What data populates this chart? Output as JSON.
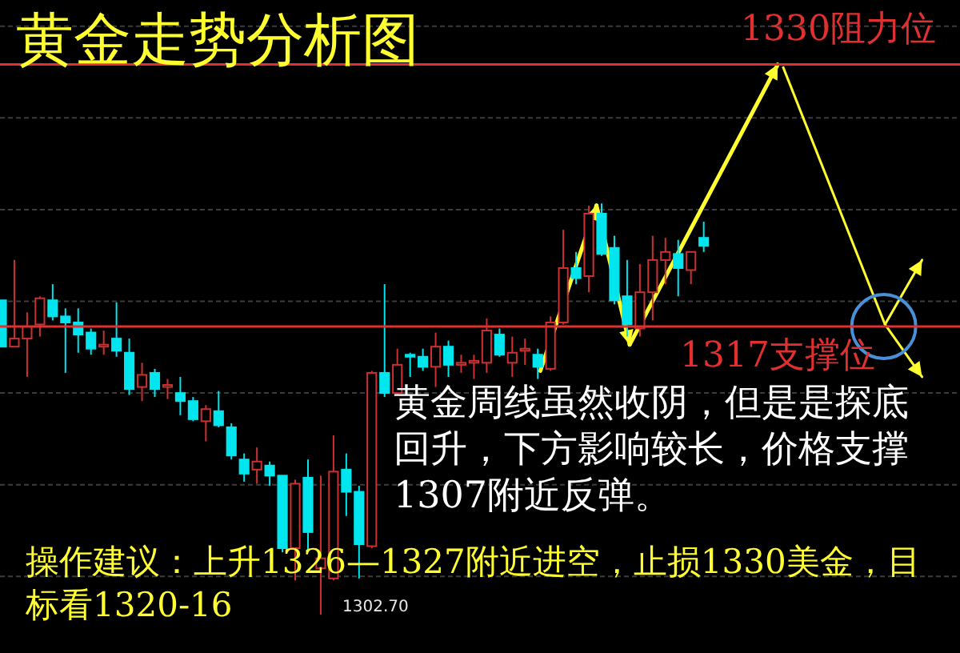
{
  "chart_data": {
    "type": "candlestick",
    "title": "黄金走势分析图",
    "categories": [
      null,
      null,
      null,
      null,
      null,
      null,
      null,
      null,
      null,
      null,
      null,
      null,
      null,
      null,
      null,
      null,
      null,
      null,
      null,
      null,
      null,
      null,
      null,
      null,
      null,
      null,
      null,
      null,
      null,
      null,
      null,
      null,
      null,
      null,
      null,
      null,
      null,
      null,
      null,
      null,
      null,
      null,
      null,
      null,
      null,
      null,
      null,
      null,
      null,
      null,
      null,
      null,
      null,
      null,
      null,
      null
    ],
    "ohlc": [
      [
        1318.3,
        1318.3,
        1316.0,
        1316.0
      ],
      [
        1316.0,
        1320.3,
        1316.0,
        1316.4
      ],
      [
        1316.4,
        1317.7,
        1314.5,
        1317.0
      ],
      [
        1317.1,
        1318.5,
        1316.5,
        1318.4
      ],
      [
        1318.3,
        1319.1,
        1317.3,
        1317.5
      ],
      [
        1317.5,
        1317.9,
        1314.7,
        1317.2
      ],
      [
        1317.2,
        1317.9,
        1315.7,
        1316.6
      ],
      [
        1316.7,
        1316.9,
        1315.6,
        1315.9
      ],
      [
        1316.0,
        1316.8,
        1315.6,
        1316.1
      ],
      [
        1316.4,
        1318.2,
        1315.5,
        1315.8
      ],
      [
        1315.7,
        1316.4,
        1313.6,
        1313.9
      ],
      [
        1314.0,
        1315.2,
        1313.3,
        1314.6
      ],
      [
        1314.7,
        1314.9,
        1313.5,
        1313.9
      ],
      [
        1314.0,
        1314.4,
        1313.4,
        1314.1
      ],
      [
        1313.7,
        1314.5,
        1312.6,
        1313.3
      ],
      [
        1313.3,
        1313.5,
        1312.3,
        1312.4
      ],
      [
        1312.3,
        1313.1,
        1311.3,
        1312.9
      ],
      [
        1312.8,
        1313.8,
        1312.0,
        1312.1
      ],
      [
        1312.0,
        1312.2,
        1310.4,
        1310.6
      ],
      [
        1310.4,
        1310.7,
        1309.3,
        1309.7
      ],
      [
        1309.9,
        1311.0,
        1309.2,
        1310.3
      ],
      [
        1310.1,
        1310.3,
        1309.1,
        1309.6
      ],
      [
        1309.6,
        1309.6,
        1305.8,
        1306.0
      ],
      [
        1306.0,
        1309.4,
        1304.4,
        1309.2
      ],
      [
        1309.5,
        1310.4,
        1305.8,
        1306.8
      ],
      [
        1305.0,
        1309.6,
        1302.7,
        1305.5
      ],
      [
        1304.5,
        1311.6,
        1304.4,
        1309.8
      ],
      [
        1309.9,
        1310.7,
        1307.6,
        1308.8
      ],
      [
        1308.8,
        1309.1,
        1304.5,
        1306.2
      ],
      [
        1306.1,
        1314.8,
        1306.0,
        1314.7
      ],
      [
        1314.7,
        1319.1,
        1313.5,
        1313.7
      ],
      [
        1313.7,
        1315.9,
        1313.6,
        1315.1
      ],
      [
        1315.6,
        1315.7,
        1314.5,
        1315.5
      ],
      [
        1315.5,
        1315.9,
        1314.8,
        1315.0
      ],
      [
        1315.0,
        1316.7,
        1314.0,
        1316.0
      ],
      [
        1316.0,
        1316.3,
        1314.5,
        1315.1
      ],
      [
        1315.1,
        1315.6,
        1314.7,
        1315.2
      ],
      [
        1315.2,
        1315.6,
        1314.4,
        1315.3
      ],
      [
        1315.2,
        1317.4,
        1314.7,
        1316.8
      ],
      [
        1316.6,
        1316.9,
        1315.5,
        1315.6
      ],
      [
        1315.2,
        1316.5,
        1314.5,
        1315.7
      ],
      [
        1315.8,
        1316.4,
        1315.1,
        1315.9
      ],
      [
        1315.6,
        1315.9,
        1314.4,
        1315.0
      ],
      [
        1314.9,
        1317.5,
        1314.8,
        1317.2
      ],
      [
        1317.2,
        1321.8,
        1317.1,
        1319.9
      ],
      [
        1319.9,
        1320.7,
        1319.1,
        1319.4
      ],
      [
        1319.5,
        1323.0,
        1318.7,
        1322.6
      ],
      [
        1322.6,
        1323.1,
        1320.5,
        1320.6
      ],
      [
        1320.9,
        1321.5,
        1318.1,
        1318.3
      ],
      [
        1318.5,
        1320.3,
        1316.5,
        1317.1
      ],
      [
        1316.9,
        1320.1,
        1316.5,
        1318.7
      ],
      [
        1318.7,
        1321.5,
        1317.3,
        1320.3
      ],
      [
        1320.3,
        1321.4,
        1319.1,
        1320.7
      ],
      [
        1320.6,
        1321.3,
        1318.5,
        1319.9
      ],
      [
        1319.8,
        1320.7,
        1319.1,
        1320.7
      ],
      [
        1321.4,
        1322.2,
        1320.7,
        1321.0
      ]
    ],
    "colors": [
      "#00e5ee",
      "#cc3030",
      "#cc3030",
      "#cc3030",
      "#00e5ee",
      "#00e5ee",
      "#00e5ee",
      "#00e5ee",
      "#cc3030",
      "#00e5ee",
      "#00e5ee",
      "#cc3030",
      "#00e5ee",
      "#cc3030",
      "#00e5ee",
      "#00e5ee",
      "#cc3030",
      "#00e5ee",
      "#00e5ee",
      "#00e5ee",
      "#cc3030",
      "#00e5ee",
      "#00e5ee",
      "#cc3030",
      "#00e5ee",
      "#cc3030",
      "#cc3030",
      "#00e5ee",
      "#00e5ee",
      "#cc3030",
      "#00e5ee",
      "#cc3030",
      "#00e5ee",
      "#00e5ee",
      "#cc3030",
      "#00e5ee",
      "#cc3030",
      "#cc3030",
      "#cc3030",
      "#00e5ee",
      "#cc3030",
      "#cc3030",
      "#00e5ee",
      "#cc3030",
      "#cc3030",
      "#00e5ee",
      "#cc3030",
      "#00e5ee",
      "#00e5ee",
      "#00e5ee",
      "#cc3030",
      "#cc3030",
      "#cc3030",
      "#00e5ee",
      "#cc3030",
      "#00e5ee"
    ],
    "ylim": [
      1300.8,
      1333.2
    ],
    "yticks": [
      {
        "value": 1304.6,
        "label": null
      },
      {
        "value": 1309.15,
        "label": null
      },
      {
        "value": 1313.7,
        "label": null
      },
      {
        "value": 1318.25,
        "label": null
      },
      {
        "value": 1322.8,
        "label": null
      },
      {
        "value": 1327.35,
        "label": null
      },
      {
        "value": 1331.9,
        "label": null
      }
    ],
    "grid": "y",
    "ref_lines": [
      {
        "axis": "y",
        "value": 1330,
        "label": "1330阻力位",
        "color": "#e03030"
      },
      {
        "axis": "y",
        "value": 1317,
        "label": "1317支撑位",
        "color": "#e03030"
      }
    ],
    "annotations": [
      "黄金周线虽然收阴，但是是探底回升，下方影响较长，价格支撑1307附近反弹。",
      "操作建议：上升1326—1327附近进空，止损1330美金，目标看1320-16",
      "1302.70"
    ]
  }
}
